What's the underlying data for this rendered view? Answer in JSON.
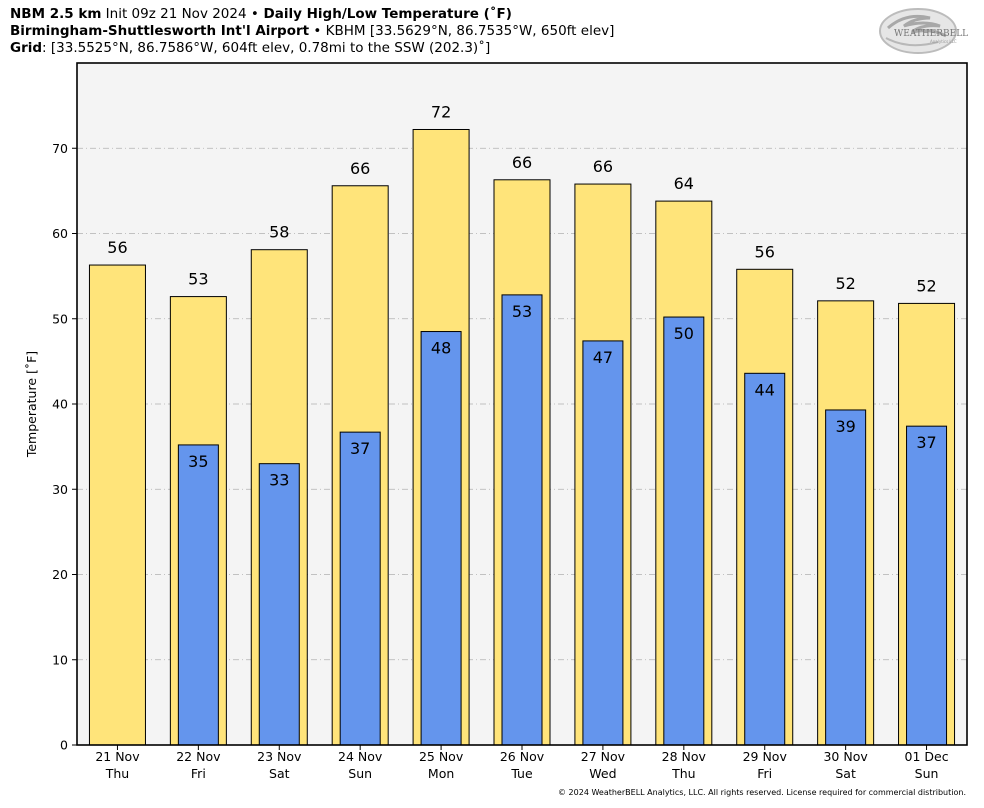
{
  "header": {
    "line1": {
      "model": "NBM 2.5 km",
      "init": " Init 09z 21 Nov 2024 ",
      "sep": "•",
      "product": " Daily High/Low Temperature (˚F)"
    },
    "line2": {
      "station": "Birmingham-Shuttlesworth Int'l Airport",
      "sep": " • ",
      "detail": "KBHM [33.5629°N, 86.7535°W, 650ft elev]"
    },
    "line3": {
      "label": "Grid",
      "detail": ": [33.5525°N, 86.7586°W, 604ft elev, 0.78mi to the SSW (202.3)˚]"
    }
  },
  "logo": {
    "text_main": "WEATHERBELL",
    "text_sub": "Analytics LLC"
  },
  "copyright": "© 2024 WeatherBELL Analytics, LLC. All rights reserved. License required for commercial distribution.",
  "colors": {
    "high": "#ffe47a",
    "low": "#6495ed",
    "plot_bg": "#f4f4f4",
    "grid": "#b0b0b0"
  },
  "chart_data": {
    "type": "bar",
    "ylabel": "Temperature [˚F]",
    "ylim": [
      0,
      80
    ],
    "yticks": [
      0,
      10,
      20,
      30,
      40,
      50,
      60,
      70
    ],
    "grid": true,
    "categories": [
      {
        "date": "21 Nov",
        "day": "Thu"
      },
      {
        "date": "22 Nov",
        "day": "Fri"
      },
      {
        "date": "23 Nov",
        "day": "Sat"
      },
      {
        "date": "24 Nov",
        "day": "Sun"
      },
      {
        "date": "25 Nov",
        "day": "Mon"
      },
      {
        "date": "26 Nov",
        "day": "Tue"
      },
      {
        "date": "27 Nov",
        "day": "Wed"
      },
      {
        "date": "28 Nov",
        "day": "Thu"
      },
      {
        "date": "29 Nov",
        "day": "Fri"
      },
      {
        "date": "30 Nov",
        "day": "Sat"
      },
      {
        "date": "01 Dec",
        "day": "Sun"
      }
    ],
    "series": [
      {
        "values": [
          56.3,
          52.6,
          58.1,
          65.6,
          72.2,
          66.3,
          65.8,
          63.8,
          55.8,
          52.1,
          51.8
        ],
        "labels": [
          "56",
          "53",
          "58",
          "66",
          "72",
          "66",
          "66",
          "64",
          "56",
          "52",
          "52"
        ]
      },
      {
        "values": [
          null,
          35.2,
          33.0,
          36.7,
          48.5,
          52.8,
          47.4,
          50.2,
          43.6,
          39.3,
          37.4
        ],
        "labels": [
          null,
          "35",
          "33",
          "37",
          "48",
          "53",
          "47",
          "50",
          "44",
          "39",
          "37"
        ]
      }
    ]
  }
}
